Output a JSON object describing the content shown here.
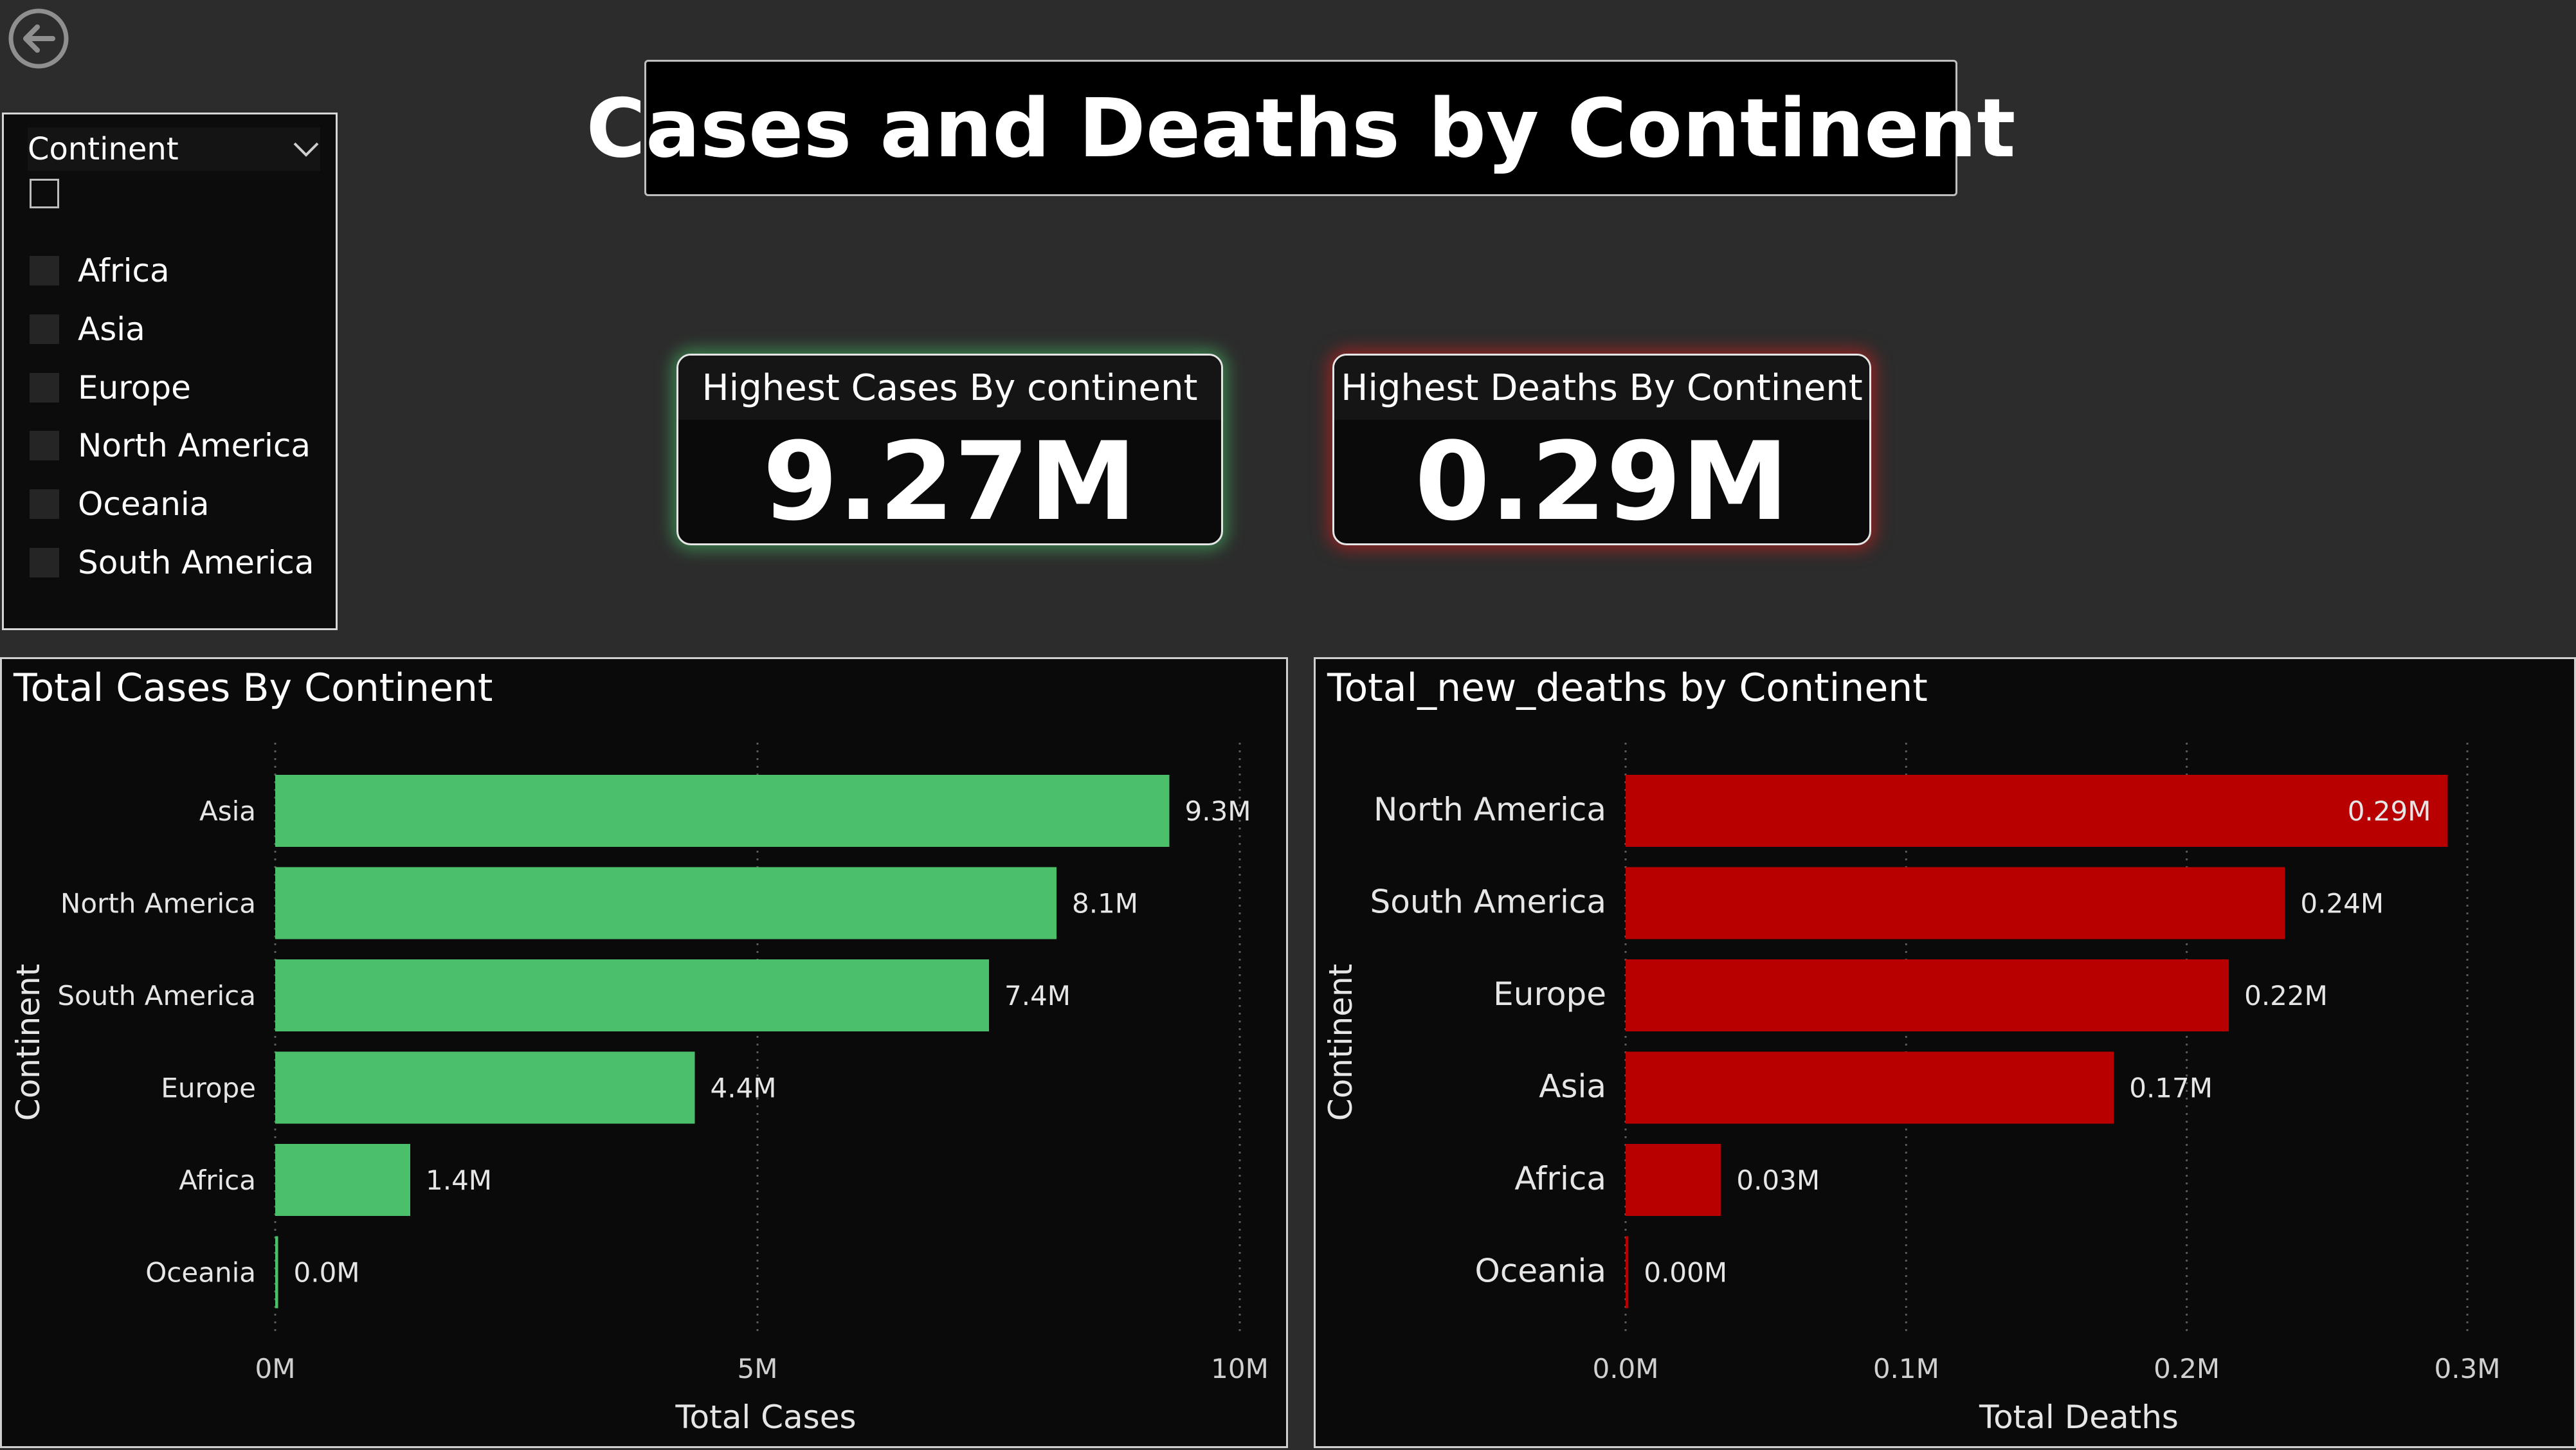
{
  "page": {
    "title": "Cases and Deaths by Continent",
    "background": "#2c2c2c"
  },
  "nav": {
    "back_icon": "back-arrow-icon"
  },
  "slicer": {
    "title": "Continent",
    "items": [
      "Africa",
      "Asia",
      "Europe",
      "North America",
      "Oceania",
      "South America"
    ]
  },
  "kpis": {
    "cases": {
      "label": "Highest Cases By continent",
      "value": "9.27M",
      "glow": "#4cd170"
    },
    "deaths": {
      "label": "Highest Deaths By Continent",
      "value": "0.29M",
      "glow": "#dc1e1e"
    }
  },
  "chart_data": [
    {
      "type": "bar",
      "orientation": "horizontal",
      "title": "Total Cases By Continent",
      "xlabel": "Total Cases",
      "ylabel": "Continent",
      "categories": [
        "Asia",
        "North America",
        "South America",
        "Europe",
        "Africa",
        "Oceania"
      ],
      "values": [
        9.27,
        8.1,
        7.4,
        4.35,
        1.4,
        0.03
      ],
      "data_labels": [
        "9.3M",
        "8.1M",
        "7.4M",
        "4.4M",
        "1.4M",
        "0.0M"
      ],
      "unit": "M",
      "xlim": [
        0,
        10
      ],
      "ticks": [
        0,
        5,
        10
      ],
      "tick_labels": [
        "0M",
        "5M",
        "10M"
      ],
      "color": "#4cbf6b",
      "label_position": "outside",
      "grid": "vertical-dotted"
    },
    {
      "type": "bar",
      "orientation": "horizontal",
      "title": "Total_new_deaths by Continent",
      "xlabel": "Total Deaths",
      "ylabel": "Continent",
      "categories": [
        "North America",
        "South America",
        "Europe",
        "Asia",
        "Africa",
        "Oceania"
      ],
      "values": [
        0.293,
        0.235,
        0.215,
        0.174,
        0.034,
        0.001
      ],
      "data_labels": [
        "0.29M",
        "0.24M",
        "0.22M",
        "0.17M",
        "0.03M",
        "0.00M"
      ],
      "unit": "M",
      "xlim": [
        0,
        0.3
      ],
      "ticks": [
        0,
        0.1,
        0.2,
        0.3
      ],
      "tick_labels": [
        "0.0M",
        "0.1M",
        "0.2M",
        "0.3M"
      ],
      "color": "#b80000",
      "label_position": "inside-first",
      "grid": "vertical-dotted"
    }
  ]
}
